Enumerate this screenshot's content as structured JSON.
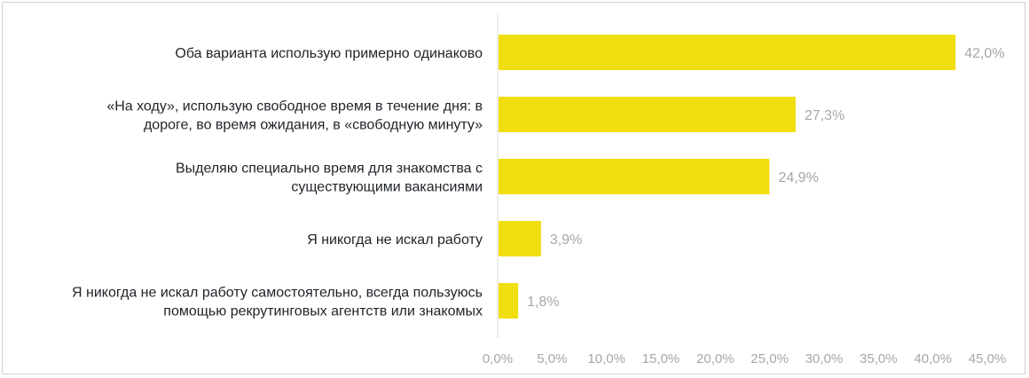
{
  "chart_data": {
    "type": "bar",
    "orientation": "horizontal",
    "categories": [
      [
        "Оба варианта использую примерно одинаково"
      ],
      [
        "«На ходу», использую свободное время в течение дня: в",
        "дороге, во время ожидания, в «свободную минуту»"
      ],
      [
        "Выделяю специально время для знакомства с",
        "существующими вакансиями"
      ],
      [
        "Я никогда не искал работу"
      ],
      [
        "Я никогда не искал работу самостоятельно, всегда пользуюсь",
        "помощью рекрутинговых агентств или знакомых"
      ]
    ],
    "values": [
      42.0,
      27.3,
      24.9,
      3.9,
      1.8
    ],
    "value_labels": [
      "42,0%",
      "27,3%",
      "24,9%",
      "3,9%",
      "1,8%"
    ],
    "xlim": [
      0,
      45
    ],
    "x_ticks": [
      "0,0%",
      "5,0%",
      "10,0%",
      "15,0%",
      "20,0%",
      "25,0%",
      "30,0%",
      "35,0%",
      "40,0%",
      "45,0%"
    ],
    "grid": false,
    "legend": "none",
    "colors": {
      "bar": "#f0de0f",
      "axis": "#d9d9d9",
      "value_text": "#a6a6a6",
      "label_text": "#1f2328"
    }
  }
}
